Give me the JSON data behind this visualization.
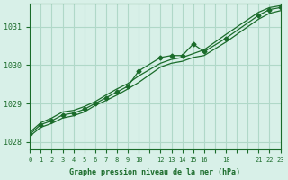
{
  "background_color": "#d8f0e8",
  "grid_color": "#b0d8c8",
  "line_color": "#1a6b2a",
  "xlim": [
    0,
    23
  ],
  "ylim": [
    1027.8,
    1031.6
  ],
  "yticks": [
    1028,
    1029,
    1030,
    1031
  ],
  "xtick_positions": [
    0,
    1,
    2,
    3,
    4,
    5,
    6,
    7,
    8,
    9,
    10,
    11,
    12,
    13,
    14,
    15,
    16,
    17,
    18,
    19,
    20,
    21,
    22,
    23
  ],
  "xtick_labels": [
    "0",
    "1",
    "2",
    "3",
    "4",
    "5",
    "6",
    "7",
    "8",
    "9",
    "10",
    "",
    "12",
    "13",
    "14",
    "15",
    "16",
    "",
    "18",
    "",
    "",
    "21",
    "22",
    "23"
  ],
  "xlabel": "Graphe pression niveau de la mer (hPa)",
  "x_main": [
    0,
    1,
    2,
    3,
    4,
    5,
    6,
    7,
    8,
    9,
    10,
    12,
    13,
    14,
    15,
    16,
    18,
    21,
    22,
    23
  ],
  "y_main": [
    1028.2,
    1028.45,
    1028.55,
    1028.7,
    1028.75,
    1028.85,
    1029.0,
    1029.15,
    1029.3,
    1029.45,
    1029.85,
    1030.2,
    1030.25,
    1030.25,
    1030.55,
    1030.35,
    1030.7,
    1031.3,
    1031.45,
    1031.5
  ],
  "x_line2": [
    0,
    1,
    2,
    3,
    4,
    5,
    6,
    7,
    8,
    9,
    10,
    12,
    13,
    14,
    15,
    16,
    18,
    21,
    22,
    23
  ],
  "y_line2": [
    1028.15,
    1028.38,
    1028.48,
    1028.62,
    1028.68,
    1028.78,
    1028.95,
    1029.08,
    1029.22,
    1029.38,
    1029.55,
    1029.95,
    1030.05,
    1030.1,
    1030.2,
    1030.25,
    1030.6,
    1031.2,
    1031.35,
    1031.42
  ],
  "x_line3": [
    0,
    1,
    2,
    3,
    4,
    5,
    6,
    7,
    8,
    9,
    10,
    12,
    13,
    14,
    15,
    16,
    18,
    21,
    22,
    23
  ],
  "y_line3": [
    1028.25,
    1028.5,
    1028.62,
    1028.78,
    1028.82,
    1028.92,
    1029.05,
    1029.22,
    1029.38,
    1029.52,
    1029.72,
    1030.05,
    1030.15,
    1030.2,
    1030.3,
    1030.4,
    1030.8,
    1031.38,
    1031.5,
    1031.55
  ]
}
